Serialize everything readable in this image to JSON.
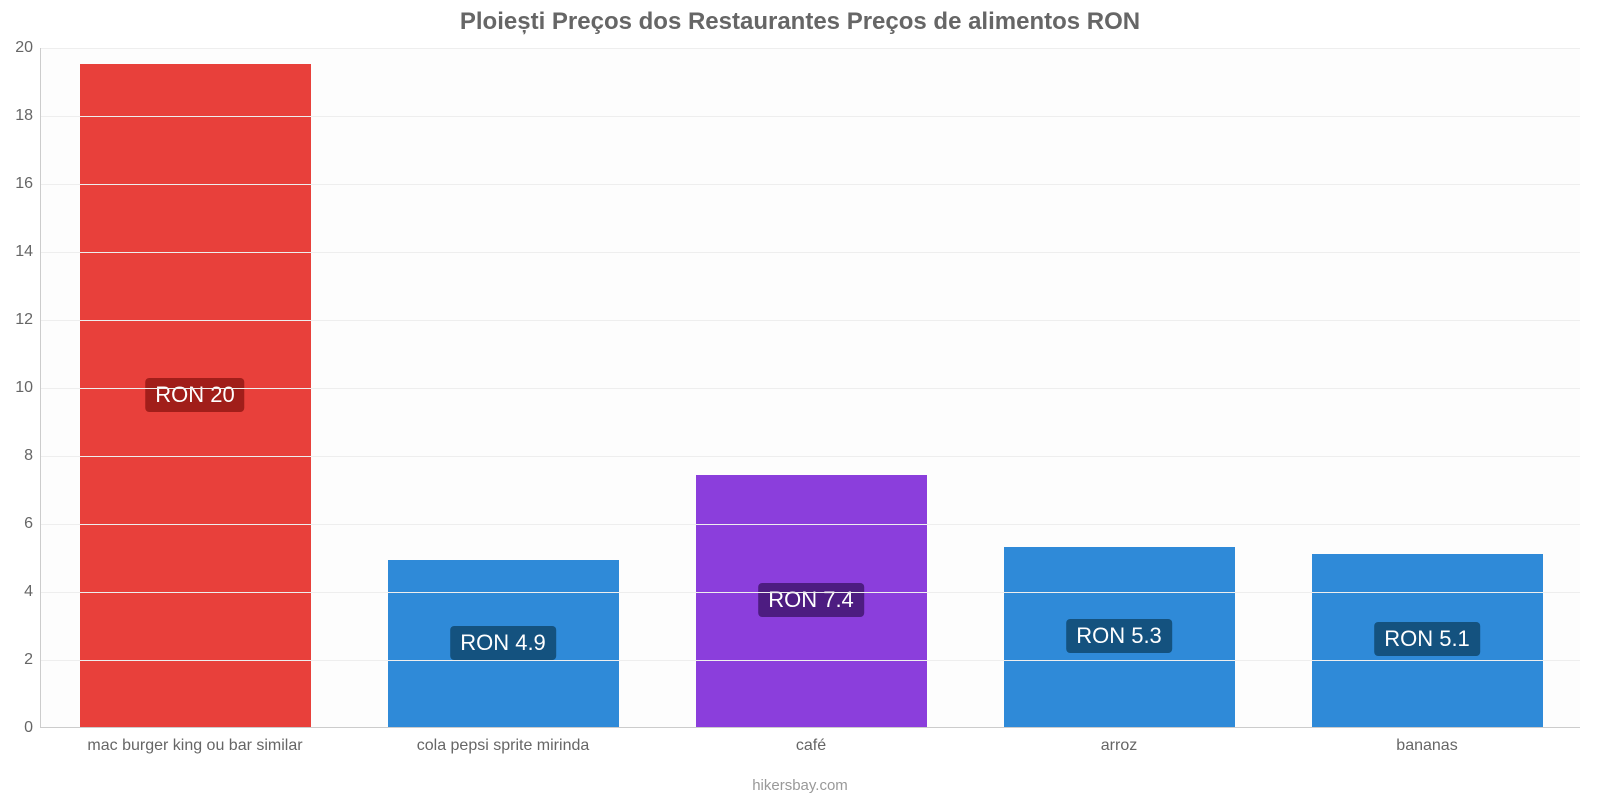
{
  "chart": {
    "type": "bar",
    "title": "Ploiești Preços dos Restaurantes Preços de alimentos RON",
    "title_fontsize": 24,
    "title_color": "#666666",
    "background_color": "#ffffff",
    "plot_background_color": "#fdfdfd",
    "grid_color": "#eeeeee",
    "axis_color": "#cccccc",
    "tick_label_color": "#666666",
    "tick_label_fontsize": 16,
    "x_tick_label_fontsize": 16,
    "yaxis": {
      "min": 0,
      "max": 20,
      "tick_step": 2
    },
    "bar_width_ratio": 0.75,
    "data_label_fontsize": 22,
    "data_label_text_color": "#ffffff",
    "footer": "hikersbay.com",
    "footer_fontsize": 15,
    "footer_color": "#999999",
    "categories": [
      "mac burger king ou bar similar",
      "cola pepsi sprite mirinda",
      "café",
      "arroz",
      "bananas"
    ],
    "values": [
      19.5,
      4.9,
      7.4,
      5.3,
      5.1
    ],
    "data_labels": [
      "RON 20",
      "RON 4.9",
      "RON 7.4",
      "RON 5.3",
      "RON 5.1"
    ],
    "bar_colors": [
      "#e8403b",
      "#2f8ad8",
      "#8b3edc",
      "#2f8ad8",
      "#2f8ad8"
    ],
    "badge_colors": [
      "#a11e1a",
      "#14527f",
      "#4d1c81",
      "#14527f",
      "#14527f"
    ]
  }
}
